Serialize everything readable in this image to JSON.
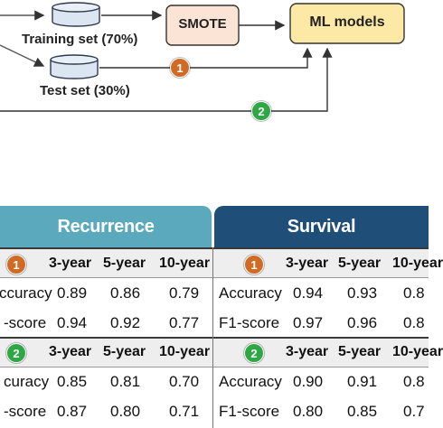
{
  "flow": {
    "training_label": "Training set (70%)",
    "test_label": "Test set (30%)",
    "smote_label": "SMOTE",
    "ml_label": "ML models",
    "badge1": "1",
    "badge2": "2"
  },
  "table": {
    "recurrence_title": "Recurrence",
    "survival_title": "Survival",
    "columns": [
      "3-year",
      "5-year",
      "10-year"
    ],
    "group1": {
      "badge": "1",
      "recurrence": {
        "rows": [
          {
            "metric": "ccuracy",
            "values": [
              "0.89",
              "0.86",
              "0.79"
            ]
          },
          {
            "metric": "-score",
            "values": [
              "0.94",
              "0.92",
              "0.77"
            ]
          }
        ]
      },
      "survival": {
        "rows": [
          {
            "metric": "Accuracy",
            "values": [
              "0.94",
              "0.93",
              "0.8"
            ]
          },
          {
            "metric": "F1-score",
            "values": [
              "0.97",
              "0.96",
              "0.8"
            ]
          }
        ]
      },
      "survival_last_col": "10-year"
    },
    "group2": {
      "badge": "2",
      "recurrence": {
        "rows": [
          {
            "metric": "curacy",
            "values": [
              "0.85",
              "0.81",
              "0.70"
            ]
          },
          {
            "metric": "-score",
            "values": [
              "0.87",
              "0.80",
              "0.71"
            ]
          }
        ]
      },
      "survival": {
        "rows": [
          {
            "metric": "Accuracy",
            "values": [
              "0.90",
              "0.91",
              "0.8"
            ]
          },
          {
            "metric": "F1-score",
            "values": [
              "0.80",
              "0.85",
              "0.7"
            ]
          }
        ]
      },
      "survival_last_col": "10-year"
    }
  },
  "colors": {
    "recurrence_header": "#5aa9bd",
    "survival_header": "#1f4e79",
    "smote_box": "#fbe3d6",
    "ml_box": "#fde9a6",
    "cylinder": "#dce6f2",
    "orange_badge": "#d06a24",
    "green_badge": "#2ea844"
  }
}
